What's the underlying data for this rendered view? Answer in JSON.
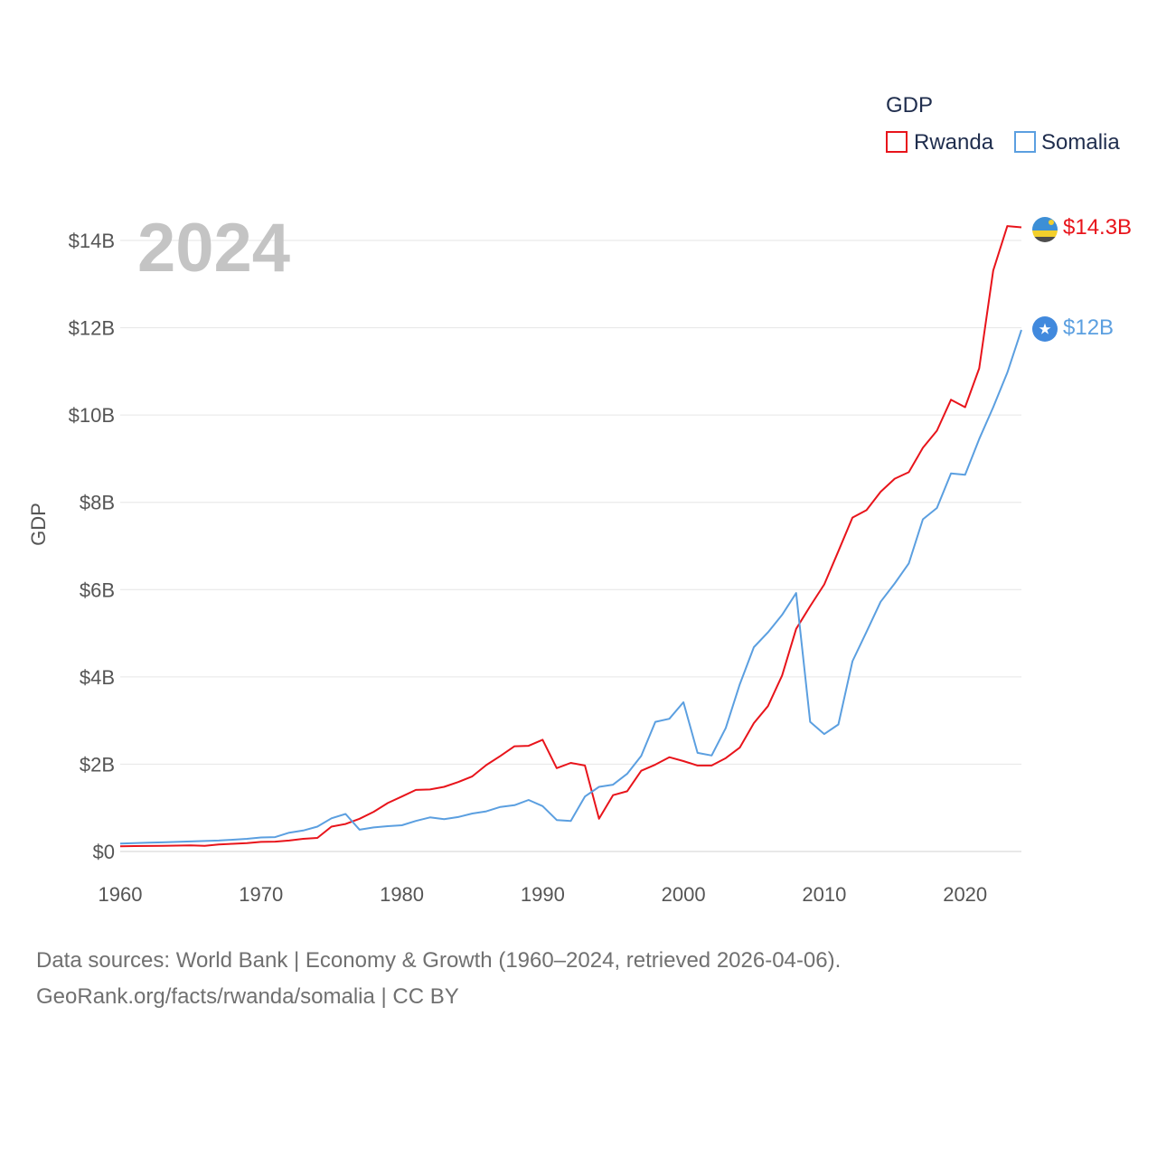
{
  "chart_data": {
    "type": "line",
    "title": "GDP",
    "ylabel": "GDP",
    "xlabel": "",
    "current_year": "2024",
    "xlim": [
      1960,
      2024
    ],
    "ylim": [
      0,
      14000000000
    ],
    "x_ticks": [
      1960,
      1970,
      1980,
      1990,
      2000,
      2010,
      2020
    ],
    "x_tick_labels": [
      "1960",
      "1970",
      "1980",
      "1990",
      "2000",
      "2010",
      "2020"
    ],
    "y_ticks": [
      0,
      2000000000,
      4000000000,
      6000000000,
      8000000000,
      10000000000,
      12000000000,
      14000000000
    ],
    "y_tick_labels": [
      "$0",
      "$2B",
      "$4B",
      "$6B",
      "$8B",
      "$10B",
      "$12B",
      "$14B"
    ],
    "legend_position": "top-right",
    "x": [
      1960,
      1961,
      1962,
      1963,
      1964,
      1965,
      1966,
      1967,
      1968,
      1969,
      1970,
      1971,
      1972,
      1973,
      1974,
      1975,
      1976,
      1977,
      1978,
      1979,
      1980,
      1981,
      1982,
      1983,
      1984,
      1985,
      1986,
      1987,
      1988,
      1989,
      1990,
      1991,
      1992,
      1993,
      1994,
      1995,
      1996,
      1997,
      1998,
      1999,
      2000,
      2001,
      2002,
      2003,
      2004,
      2005,
      2006,
      2007,
      2008,
      2009,
      2010,
      2011,
      2012,
      2013,
      2014,
      2015,
      2016,
      2017,
      2018,
      2019,
      2020,
      2021,
      2022,
      2023,
      2024
    ],
    "series": [
      {
        "name": "Rwanda",
        "color": "#e8141b",
        "end_label": "$14.3B",
        "values": [
          120000000,
          124000000,
          127000000,
          130000000,
          135000000,
          140000000,
          130000000,
          160000000,
          175000000,
          190000000,
          220000000,
          225000000,
          250000000,
          290000000,
          310000000,
          570000000,
          630000000,
          750000000,
          910000000,
          1110000000,
          1260000000,
          1410000000,
          1420000000,
          1480000000,
          1590000000,
          1720000000,
          1980000000,
          2190000000,
          2410000000,
          2420000000,
          2560000000,
          1910000000,
          2030000000,
          1970000000,
          750000000,
          1290000000,
          1380000000,
          1850000000,
          1990000000,
          2160000000,
          2070000000,
          1970000000,
          1970000000,
          2140000000,
          2380000000,
          2940000000,
          3330000000,
          4030000000,
          5100000000,
          5620000000,
          6120000000,
          6880000000,
          7650000000,
          7820000000,
          8240000000,
          8540000000,
          8690000000,
          9250000000,
          9640000000,
          10350000000,
          10180000000,
          11070000000,
          13310000000,
          14330000000,
          14300000000
        ]
      },
      {
        "name": "Somalia",
        "color": "#5b9fe0",
        "end_label": "$12B",
        "values": [
          180000000,
          190000000,
          200000000,
          210000000,
          220000000,
          230000000,
          240000000,
          250000000,
          270000000,
          290000000,
          320000000,
          330000000,
          430000000,
          480000000,
          570000000,
          760000000,
          860000000,
          500000000,
          550000000,
          580000000,
          600000000,
          700000000,
          780000000,
          740000000,
          790000000,
          870000000,
          920000000,
          1020000000,
          1060000000,
          1180000000,
          1040000000,
          720000000,
          700000000,
          1260000000,
          1480000000,
          1530000000,
          1780000000,
          2190000000,
          2970000000,
          3040000000,
          3420000000,
          2260000000,
          2200000000,
          2830000000,
          3830000000,
          4680000000,
          5020000000,
          5420000000,
          5920000000,
          2970000000,
          2690000000,
          2910000000,
          4360000000,
          5030000000,
          5720000000,
          6140000000,
          6600000000,
          7610000000,
          7870000000,
          8660000000,
          8630000000,
          9450000000,
          10180000000,
          10970000000,
          11950000000
        ]
      }
    ]
  },
  "legend": {
    "title": "GDP",
    "items": [
      "Rwanda",
      "Somalia"
    ]
  },
  "footer": {
    "line1": "Data sources: World Bank | Economy & Growth (1960–2024, retrieved 2026-04-06).",
    "line2": "GeoRank.org/facts/rwanda/somalia | CC BY"
  },
  "flags": {
    "rwanda": "rwanda-flag-icon",
    "somalia": "somalia-flag-icon"
  }
}
